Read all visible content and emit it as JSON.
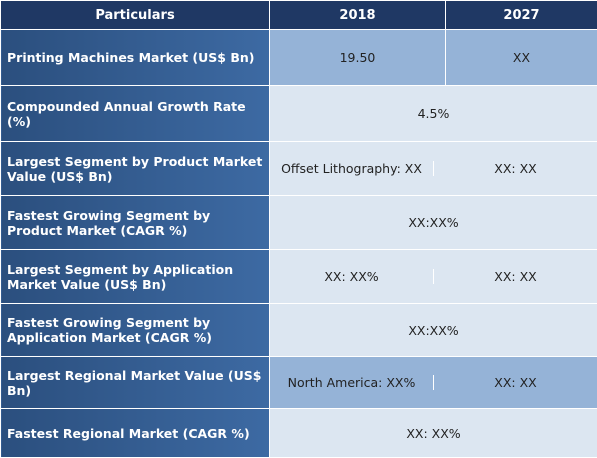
{
  "header": {
    "particulars": "Particulars",
    "col_2018": "2018",
    "col_2027": "2027"
  },
  "rows": [
    {
      "label": "Printing Machines Market (US$ Bn)",
      "v2018": "19.50",
      "v2027": "XX"
    },
    {
      "label": "Compounded Annual Growth Rate (%)",
      "merged": "4.5%"
    },
    {
      "label": "Largest Segment by Product Market Value (US$ Bn)",
      "v2018": "Offset Lithography: XX",
      "v2027": "XX: XX"
    },
    {
      "label": "Fastest Growing Segment by Product Market (CAGR %)",
      "merged": "XX:XX%"
    },
    {
      "label": "Largest Segment by Application Market Value (US$ Bn)",
      "v2018": "XX: XX%",
      "v2027": "XX: XX"
    },
    {
      "label": "Fastest Growing Segment by Application Market (CAGR %)",
      "merged": "XX:XX%"
    },
    {
      "label": "Largest Regional Market Value (US$ Bn)",
      "v2018": "North America: XX%",
      "v2027": "XX: XX"
    },
    {
      "label": "Fastest Regional Market (CAGR %)",
      "merged": "XX: XX%"
    }
  ],
  "colors": {
    "header_bg": "#1f3864",
    "label_bg": "#2b4f7e",
    "cell_light": "#dce6f1",
    "cell_mid": "#95b3d7"
  }
}
